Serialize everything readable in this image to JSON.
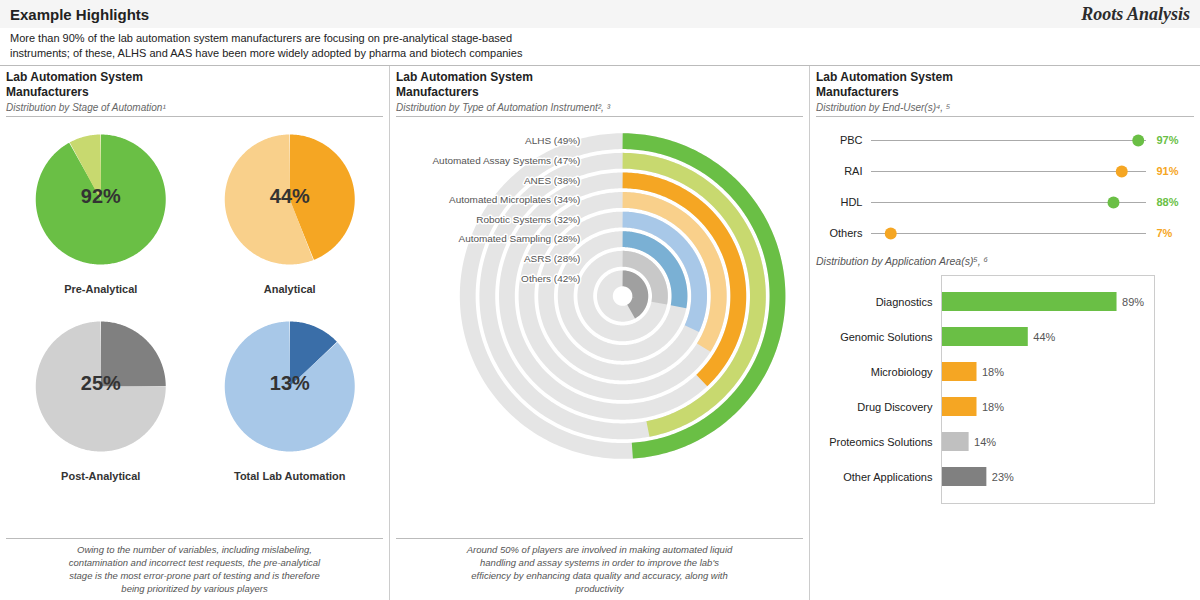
{
  "title": "Example Highlights",
  "subtitle": "More than 90% of the lab automation system manufacturers are focusing on pre-analytical stage-based\ninstruments; of these, ALHS and AAS have been more widely adopted by pharma and biotech companies",
  "annotations": [
    "Roots Analysis"
  ],
  "chart_data": [
    {
      "type": "pie",
      "title": "Lab Automation System\nManufacturers",
      "subtitle": "Distribution by Stage of Automation¹",
      "annotations": [
        "Owing to the number of variables, including mislabeling,\ncontamination and incorrect test requests, the pre-analytical\nstage is the most error-prone part of testing and is therefore\nbeing prioritized by various players"
      ],
      "data_labels": true,
      "series": [
        {
          "name": "Pre-Analytical",
          "values": [
            92,
            8
          ],
          "value_labels": [
            "92%",
            null
          ],
          "colors": [
            "#6abf45",
            "#c8d96f"
          ]
        },
        {
          "name": "Analytical",
          "values": [
            44,
            56
          ],
          "value_labels": [
            "44%",
            null
          ],
          "colors": [
            "#f5a623",
            "#f9d08b"
          ]
        },
        {
          "name": "Post-Analytical",
          "values": [
            25,
            75
          ],
          "value_labels": [
            "25%",
            null
          ],
          "colors": [
            "#808080",
            "#d0d0d0"
          ]
        },
        {
          "name": "Total Lab Automation",
          "values": [
            13,
            87
          ],
          "value_labels": [
            "13%",
            null
          ],
          "colors": [
            "#3a6ea8",
            "#a8c8e8"
          ]
        }
      ]
    },
    {
      "type": "radial_bar",
      "title": "Lab Automation System\nManufacturers",
      "subtitle": "Distribution by Type of Automation Instrument², ³",
      "annotations": [
        "Around 50% of players are involved in making automated liquid\nhandling and assay systems in order to improve the lab's\nefficiency by enhancing data quality and accuracy, along with\nproductivity"
      ],
      "categories": [
        "ALHS (49%)",
        "Automated Assay Systems (47%)",
        "ANES (38%)",
        "Automated Microplates (34%)",
        "Robotic Systems (32%)",
        "Automated Sampling (28%)",
        "ASRS (28%)",
        "Others (42%)"
      ],
      "values": [
        49,
        47,
        38,
        34,
        32,
        28,
        28,
        42
      ],
      "colors": [
        "#6abf45",
        "#c8d96f",
        "#f5a623",
        "#f9d08b",
        "#a8c8e8",
        "#7ab0d4",
        "#c8c8c8",
        "#a0a0a0"
      ],
      "ylim": [
        0,
        100
      ]
    },
    {
      "type": "lollipop",
      "orientation": "horizontal",
      "title": "Lab Automation System\nManufacturers",
      "subtitle": "Distribution by End-User(s)⁴, ⁵",
      "categories": [
        "PBC",
        "RAI",
        "HDL",
        "Others"
      ],
      "values": [
        97,
        91,
        88,
        7
      ],
      "colors": [
        "#6abf45",
        "#f5a623",
        "#6abf45",
        "#f5a623"
      ],
      "xlim": [
        0,
        100
      ],
      "tick_labels": "y",
      "data_labels": true,
      "value_labels": [
        "97%",
        "91%",
        "88%",
        "7%"
      ]
    },
    {
      "type": "bar",
      "orientation": "horizontal",
      "title": "Distribution by Application Area(s)⁵, ⁶",
      "categories": [
        "Diagnostics",
        "Genomic Solutions",
        "Microbiology",
        "Drug Discovery",
        "Proteomics Solutions",
        "Other Applications"
      ],
      "values": [
        89,
        44,
        18,
        18,
        14,
        23
      ],
      "colors": [
        "#6abf45",
        "#6abf45",
        "#f5a623",
        "#f5a623",
        "#c0c0c0",
        "#808080"
      ],
      "xlim": [
        0,
        108
      ],
      "tick_labels": "y",
      "data_labels": true,
      "value_labels": [
        "89%",
        "44%",
        "18%",
        "18%",
        "14%",
        "23%"
      ]
    }
  ]
}
